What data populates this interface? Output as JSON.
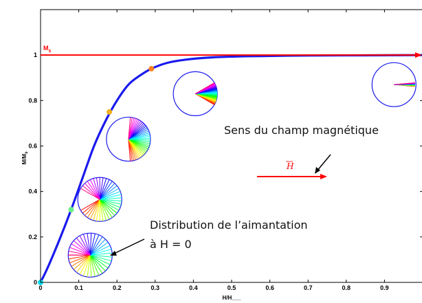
{
  "chart_data": {
    "type": "line",
    "title": "",
    "xlabel": "H/H___",
    "ylabel": "M/M_s",
    "xlim": [
      0,
      1.0
    ],
    "ylim": [
      0,
      1.2
    ],
    "xticks": [
      0,
      0.1,
      0.2,
      0.3,
      0.4,
      0.5,
      0.6,
      0.7,
      0.8,
      0.9
    ],
    "xtick_labels": [
      "0",
      "0.1",
      "0.2",
      "0.3",
      "0.4",
      "0.5",
      "0.6",
      "0.7",
      "0.8",
      "0.9"
    ],
    "yticks": [
      0,
      0.2,
      0.4,
      0.6,
      0.8,
      1
    ],
    "ytick_labels": [
      "0",
      "0.2",
      "0.4",
      "0.6",
      "0.8",
      "1"
    ],
    "grid": false,
    "curve": {
      "color": "#1a1aee",
      "x": [
        0,
        0.02,
        0.05,
        0.08,
        0.11,
        0.14,
        0.17,
        0.2,
        0.23,
        0.26,
        0.29,
        0.33,
        0.38,
        0.45,
        0.55,
        0.7,
        0.85,
        1.0
      ],
      "y": [
        0,
        0.07,
        0.19,
        0.32,
        0.46,
        0.6,
        0.71,
        0.8,
        0.87,
        0.91,
        0.94,
        0.965,
        0.98,
        0.99,
        0.995,
        0.998,
        0.999,
        1.0
      ]
    },
    "markers": [
      {
        "x": 0.0,
        "y": 0.0,
        "color": "#00ddee"
      },
      {
        "x": 0.08,
        "y": 0.32,
        "color": "#66ee88"
      },
      {
        "x": 0.18,
        "y": 0.75,
        "color": "#f5b020"
      },
      {
        "x": 0.29,
        "y": 0.94,
        "color": "#ff8020"
      }
    ],
    "saturation": {
      "label_main": "M",
      "label_sub": "s",
      "y": 1.0,
      "color": "#ff0000"
    },
    "diagrams": [
      {
        "cx": 0.13,
        "cy": 0.12,
        "spread": 360
      },
      {
        "cx": 0.155,
        "cy": 0.365,
        "spread": 300
      },
      {
        "cx": 0.23,
        "cy": 0.63,
        "spread": 170
      },
      {
        "cx": 0.405,
        "cy": 0.83,
        "spread": 60
      },
      {
        "cx": 0.925,
        "cy": 0.87,
        "spread": 10
      }
    ]
  },
  "annotations": {
    "field_direction": "Sens du champ magnétique",
    "distribution_line1": "Distribution de l’aimantation",
    "distribution_line2": "à H = 0",
    "h_vector": "H"
  }
}
